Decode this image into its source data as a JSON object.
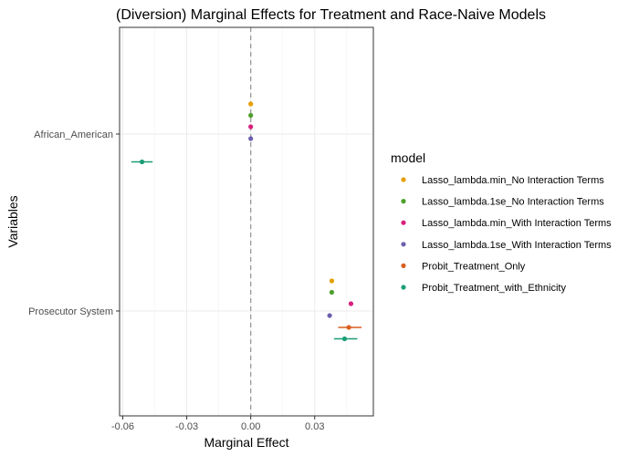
{
  "chart_data": {
    "type": "scatter",
    "title": "(Diversion) Marginal Effects for Treatment and Race-Naive Models",
    "xlabel": "Marginal Effect",
    "ylabel": "Variables",
    "xlim": [
      -0.0615,
      0.0575
    ],
    "xticks": [
      -0.06,
      -0.03,
      0.0,
      0.03
    ],
    "xtick_labels": [
      "-0.06",
      "-0.03",
      "0.00",
      "0.03"
    ],
    "categories": [
      "African_American",
      "Prosecutor System"
    ],
    "reference_line": 0,
    "grid": true,
    "legend": {
      "title": "model",
      "placement": "right"
    },
    "series": [
      {
        "name": "Lasso_lambda.min_No Interaction Terms",
        "color": "#E69F00",
        "points": [
          {
            "category": "African_American",
            "x": 0.0,
            "lo": 0.0,
            "hi": 0.0
          },
          {
            "category": "Prosecutor System",
            "x": 0.038,
            "lo": 0.038,
            "hi": 0.038
          }
        ]
      },
      {
        "name": "Lasso_lambda.1se_No Interaction Terms",
        "color": "#4DA02B",
        "points": [
          {
            "category": "African_American",
            "x": 0.0,
            "lo": 0.0,
            "hi": 0.0
          },
          {
            "category": "Prosecutor System",
            "x": 0.038,
            "lo": 0.038,
            "hi": 0.038
          }
        ]
      },
      {
        "name": "Lasso_lambda.min_With Interaction Terms",
        "color": "#D6207E",
        "points": [
          {
            "category": "African_American",
            "x": 0.0,
            "lo": 0.0,
            "hi": 0.0
          },
          {
            "category": "Prosecutor System",
            "x": 0.047,
            "lo": 0.047,
            "hi": 0.047
          }
        ]
      },
      {
        "name": "Lasso_lambda.1se_With Interaction Terms",
        "color": "#6E5FAE",
        "points": [
          {
            "category": "African_American",
            "x": 0.0,
            "lo": 0.0,
            "hi": 0.0
          },
          {
            "category": "Prosecutor System",
            "x": 0.037,
            "lo": 0.037,
            "hi": 0.037
          }
        ]
      },
      {
        "name": "Probit_Treatment_Only",
        "color": "#D95F1E",
        "points": [
          {
            "category": "Prosecutor System",
            "x": 0.046,
            "lo": 0.041,
            "hi": 0.052
          }
        ]
      },
      {
        "name": "Probit_Treatment_with_Ethnicity",
        "color": "#1B9E77",
        "points": [
          {
            "category": "African_American",
            "x": -0.051,
            "lo": -0.056,
            "hi": -0.046
          },
          {
            "category": "Prosecutor System",
            "x": 0.044,
            "lo": 0.039,
            "hi": 0.05
          }
        ]
      }
    ]
  }
}
